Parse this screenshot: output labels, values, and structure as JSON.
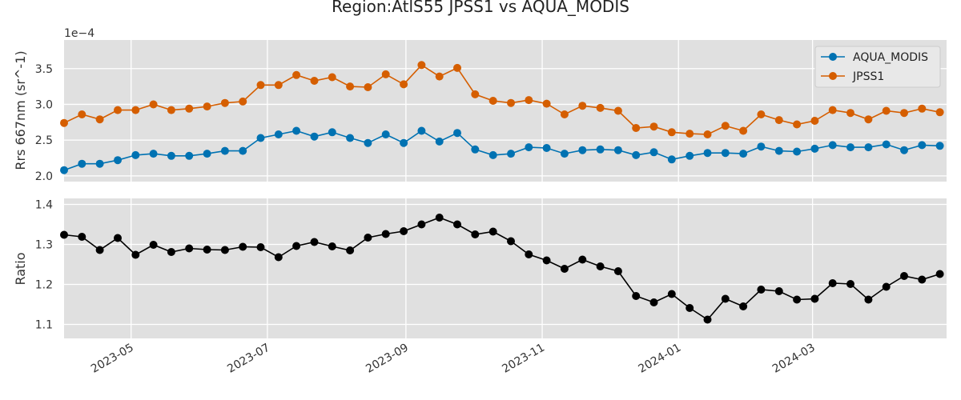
{
  "chart_data": {
    "title": "Region:AtlS55 JPSS1 vs AQUA_MODIS",
    "type": "line",
    "shared_x_ticks": [
      "2023-05",
      "2023-07",
      "2023-09",
      "2023-11",
      "2024-01",
      "2024-03"
    ],
    "x_range": [
      "2023-04-01",
      "2024-04-30"
    ],
    "x_dates": [
      "2023-04-01",
      "2023-04-09",
      "2023-04-17",
      "2023-04-25",
      "2023-05-03",
      "2023-05-11",
      "2023-05-19",
      "2023-05-27",
      "2023-06-04",
      "2023-06-12",
      "2023-06-20",
      "2023-06-28",
      "2023-07-06",
      "2023-07-14",
      "2023-07-22",
      "2023-07-30",
      "2023-08-07",
      "2023-08-15",
      "2023-08-23",
      "2023-08-31",
      "2023-09-08",
      "2023-09-16",
      "2023-09-24",
      "2023-10-02",
      "2023-10-10",
      "2023-10-18",
      "2023-10-26",
      "2023-11-03",
      "2023-11-11",
      "2023-11-19",
      "2023-11-27",
      "2023-12-05",
      "2023-12-13",
      "2023-12-21",
      "2023-12-29",
      "2024-01-06",
      "2024-01-14",
      "2024-01-22",
      "2024-01-30",
      "2024-02-07",
      "2024-02-15",
      "2024-02-23",
      "2024-03-02",
      "2024-03-10",
      "2024-03-18",
      "2024-03-26",
      "2024-04-03",
      "2024-04-11",
      "2024-04-19",
      "2024-04-27"
    ],
    "panels": [
      {
        "id": "rrs",
        "ylabel": "Rrs 667nm (sr^-1)",
        "y_scale_label": "1e−4",
        "ylim": [
          1.92,
          3.9
        ],
        "yticks": [
          2.0,
          2.5,
          3.0,
          3.5
        ],
        "ytick_labels": [
          "2.0",
          "2.5",
          "3.0",
          "3.5"
        ],
        "legend_position": "top-right",
        "series": [
          {
            "name": "AQUA_MODIS",
            "color": "#0072b2",
            "values": [
              2.08,
              2.17,
              2.17,
              2.22,
              2.29,
              2.31,
              2.28,
              2.28,
              2.31,
              2.35,
              2.35,
              2.53,
              2.58,
              2.63,
              2.55,
              2.61,
              2.53,
              2.46,
              2.58,
              2.46,
              2.63,
              2.48,
              2.6,
              2.37,
              2.29,
              2.31,
              2.4,
              2.39,
              2.31,
              2.36,
              2.37,
              2.36,
              2.29,
              2.33,
              2.23,
              2.28,
              2.32,
              2.32,
              2.31,
              2.41,
              2.35,
              2.34,
              2.38,
              2.43,
              2.4,
              2.4,
              2.44,
              2.36,
              2.43,
              2.42
            ]
          },
          {
            "name": "JPSS1",
            "color": "#d55e00",
            "values": [
              2.74,
              2.86,
              2.79,
              2.92,
              2.92,
              3.0,
              2.92,
              2.94,
              2.97,
              3.02,
              3.04,
              3.27,
              3.27,
              3.41,
              3.33,
              3.38,
              3.25,
              3.24,
              3.42,
              3.28,
              3.55,
              3.39,
              3.51,
              3.14,
              3.05,
              3.02,
              3.06,
              3.01,
              2.86,
              2.98,
              2.95,
              2.91,
              2.67,
              2.69,
              2.61,
              2.59,
              2.58,
              2.7,
              2.63,
              2.86,
              2.78,
              2.72,
              2.77,
              2.92,
              2.88,
              2.79,
              2.91,
              2.88,
              2.94,
              2.89
            ]
          }
        ]
      },
      {
        "id": "ratio",
        "ylabel": "Ratio",
        "ylim": [
          1.065,
          1.415
        ],
        "yticks": [
          1.1,
          1.2,
          1.3,
          1.4
        ],
        "ytick_labels": [
          "1.1",
          "1.2",
          "1.3",
          "1.4"
        ],
        "series": [
          {
            "name": "",
            "color": "#000000",
            "values": [
              1.324,
              1.319,
              1.286,
              1.316,
              1.274,
              1.299,
              1.281,
              1.29,
              1.287,
              1.286,
              1.294,
              1.293,
              1.268,
              1.296,
              1.306,
              1.295,
              1.285,
              1.317,
              1.326,
              1.333,
              1.35,
              1.367,
              1.35,
              1.325,
              1.332,
              1.308,
              1.275,
              1.26,
              1.239,
              1.262,
              1.245,
              1.233,
              1.171,
              1.155,
              1.176,
              1.141,
              1.112,
              1.164,
              1.145,
              1.187,
              1.183,
              1.162,
              1.164,
              1.203,
              1.201,
              1.162,
              1.194,
              1.221,
              1.212,
              1.226
            ]
          }
        ]
      }
    ]
  }
}
